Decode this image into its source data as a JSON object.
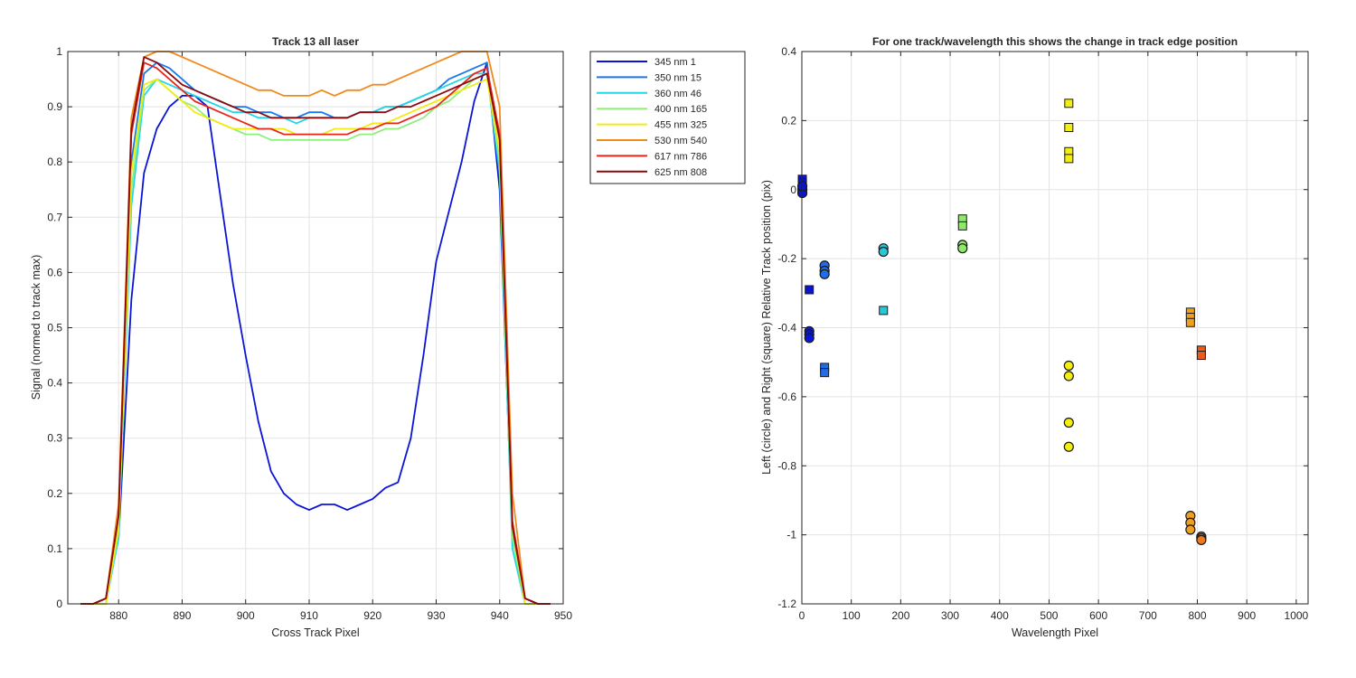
{
  "chart_data": [
    {
      "type": "line",
      "title": "Track 13  all laser",
      "xlabel": "Cross Track Pixel",
      "ylabel": "Signal (normed to track max)",
      "xlim": [
        872,
        950
      ],
      "ylim": [
        0,
        1
      ],
      "xticks": [
        880,
        890,
        900,
        910,
        920,
        930,
        940,
        950
      ],
      "yticks": [
        0,
        0.1,
        0.2,
        0.3,
        0.4,
        0.5,
        0.6,
        0.7,
        0.8,
        0.9,
        1
      ],
      "ytick_labels": [
        "0",
        "0.1",
        "0.2",
        "0.3",
        "0.4",
        "0.5",
        "0.6",
        "0.7",
        "0.8",
        "0.9",
        "1"
      ],
      "grid": true,
      "legend_position": "outside-top-right",
      "x": [
        874,
        876,
        878,
        880,
        882,
        884,
        886,
        888,
        890,
        892,
        894,
        896,
        898,
        900,
        902,
        904,
        906,
        908,
        910,
        912,
        914,
        916,
        918,
        920,
        922,
        924,
        926,
        928,
        930,
        932,
        934,
        936,
        938,
        940,
        942,
        944,
        946,
        948
      ],
      "series": [
        {
          "name": "345 nm 1",
          "color": "#0a14d6",
          "values": [
            0.0,
            0.0,
            0.01,
            0.12,
            0.55,
            0.78,
            0.86,
            0.9,
            0.92,
            0.92,
            0.9,
            0.74,
            0.58,
            0.45,
            0.33,
            0.24,
            0.2,
            0.18,
            0.17,
            0.18,
            0.18,
            0.17,
            0.18,
            0.19,
            0.21,
            0.22,
            0.3,
            0.45,
            0.62,
            0.71,
            0.8,
            0.91,
            0.98,
            0.75,
            0.12,
            0.01,
            0.0,
            0.0
          ]
        },
        {
          "name": "350 nm 15",
          "color": "#1a78ee",
          "values": [
            0.0,
            0.0,
            0.01,
            0.14,
            0.8,
            0.96,
            0.98,
            0.97,
            0.95,
            0.93,
            0.92,
            0.91,
            0.9,
            0.9,
            0.89,
            0.89,
            0.88,
            0.88,
            0.89,
            0.89,
            0.88,
            0.88,
            0.89,
            0.89,
            0.9,
            0.9,
            0.91,
            0.92,
            0.93,
            0.95,
            0.96,
            0.97,
            0.98,
            0.8,
            0.14,
            0.01,
            0.0,
            0.0
          ]
        },
        {
          "name": "360 nm 46",
          "color": "#22d6e8",
          "values": [
            0.0,
            0.0,
            0.0,
            0.12,
            0.72,
            0.92,
            0.95,
            0.94,
            0.93,
            0.92,
            0.91,
            0.9,
            0.89,
            0.89,
            0.88,
            0.88,
            0.88,
            0.87,
            0.88,
            0.88,
            0.88,
            0.88,
            0.89,
            0.89,
            0.9,
            0.9,
            0.91,
            0.92,
            0.93,
            0.94,
            0.95,
            0.96,
            0.96,
            0.78,
            0.1,
            0.0,
            0.0,
            0.0
          ]
        },
        {
          "name": "400 nm 165",
          "color": "#8ef07a",
          "values": [
            0.0,
            0.0,
            0.0,
            0.13,
            0.75,
            0.93,
            0.95,
            0.93,
            0.91,
            0.9,
            0.88,
            0.87,
            0.86,
            0.85,
            0.85,
            0.84,
            0.84,
            0.84,
            0.84,
            0.84,
            0.84,
            0.84,
            0.85,
            0.85,
            0.86,
            0.86,
            0.87,
            0.88,
            0.9,
            0.91,
            0.93,
            0.95,
            0.96,
            0.8,
            0.12,
            0.0,
            0.0,
            0.0
          ]
        },
        {
          "name": "455 nm 325",
          "color": "#f2ec12",
          "values": [
            0.0,
            0.0,
            0.0,
            0.14,
            0.78,
            0.94,
            0.95,
            0.93,
            0.91,
            0.89,
            0.88,
            0.87,
            0.86,
            0.86,
            0.86,
            0.86,
            0.86,
            0.85,
            0.85,
            0.85,
            0.86,
            0.86,
            0.86,
            0.87,
            0.87,
            0.88,
            0.89,
            0.9,
            0.91,
            0.92,
            0.93,
            0.94,
            0.95,
            0.82,
            0.14,
            0.0,
            0.0,
            0.0
          ]
        },
        {
          "name": "530 nm 540",
          "color": "#f08a1c",
          "values": [
            0.0,
            0.0,
            0.01,
            0.18,
            0.88,
            0.99,
            1.0,
            1.0,
            0.99,
            0.98,
            0.97,
            0.96,
            0.95,
            0.94,
            0.93,
            0.93,
            0.92,
            0.92,
            0.92,
            0.93,
            0.92,
            0.93,
            0.93,
            0.94,
            0.94,
            0.95,
            0.96,
            0.97,
            0.98,
            0.99,
            1.0,
            1.0,
            1.0,
            0.9,
            0.2,
            0.01,
            0.0,
            0.0
          ]
        },
        {
          "name": "617 nm 786",
          "color": "#e8261a",
          "values": [
            0.0,
            0.0,
            0.01,
            0.16,
            0.85,
            0.98,
            0.97,
            0.95,
            0.93,
            0.91,
            0.9,
            0.89,
            0.88,
            0.87,
            0.86,
            0.86,
            0.85,
            0.85,
            0.85,
            0.85,
            0.85,
            0.85,
            0.86,
            0.86,
            0.87,
            0.87,
            0.88,
            0.89,
            0.9,
            0.92,
            0.94,
            0.96,
            0.97,
            0.85,
            0.15,
            0.01,
            0.0,
            0.0
          ]
        },
        {
          "name": "625 nm 808",
          "color": "#8a0a0e",
          "values": [
            0.0,
            0.0,
            0.01,
            0.16,
            0.86,
            0.99,
            0.98,
            0.96,
            0.94,
            0.93,
            0.92,
            0.91,
            0.9,
            0.89,
            0.89,
            0.88,
            0.88,
            0.88,
            0.88,
            0.88,
            0.88,
            0.88,
            0.89,
            0.89,
            0.89,
            0.9,
            0.9,
            0.91,
            0.92,
            0.93,
            0.94,
            0.95,
            0.96,
            0.84,
            0.14,
            0.01,
            0.0,
            0.0
          ]
        }
      ]
    },
    {
      "type": "scatter",
      "title": "For one track/wavelength this shows the change in track edge position",
      "xlabel": "Wavelength Pixel",
      "ylabel": "Left (circle) and Right (square) Relative Track position (pix)",
      "xlim": [
        0,
        1024
      ],
      "ylim": [
        -1.2,
        0.4
      ],
      "xticks": [
        0,
        100,
        200,
        300,
        400,
        500,
        600,
        700,
        800,
        900,
        1000
      ],
      "yticks": [
        -1.2,
        -1,
        -0.8,
        -0.6,
        -0.4,
        -0.2,
        0,
        0.2,
        0.4
      ],
      "ytick_labels": [
        "-1.2",
        "-1",
        "-0.8",
        "-0.6",
        "-0.4",
        "-0.2",
        "0",
        "0.2",
        "0.4"
      ],
      "grid": true,
      "circles": [
        {
          "x": 1,
          "y": 0.0,
          "color": "#0a14d6"
        },
        {
          "x": 1,
          "y": -0.01,
          "color": "#0a14d6"
        },
        {
          "x": 1,
          "y": 0.01,
          "color": "#0a14d6"
        },
        {
          "x": 15,
          "y": -0.41,
          "color": "#0a14d6"
        },
        {
          "x": 15,
          "y": -0.42,
          "color": "#0a14d6"
        },
        {
          "x": 15,
          "y": -0.43,
          "color": "#0a14d6"
        },
        {
          "x": 46,
          "y": -0.22,
          "color": "#1f6ee8"
        },
        {
          "x": 46,
          "y": -0.235,
          "color": "#1f6ee8"
        },
        {
          "x": 46,
          "y": -0.245,
          "color": "#1f6ee8"
        },
        {
          "x": 165,
          "y": -0.17,
          "color": "#28c8d8"
        },
        {
          "x": 165,
          "y": -0.18,
          "color": "#28c8d8"
        },
        {
          "x": 325,
          "y": -0.16,
          "color": "#8ee86a"
        },
        {
          "x": 325,
          "y": -0.17,
          "color": "#8ee86a"
        },
        {
          "x": 540,
          "y": -0.51,
          "color": "#f4ee10"
        },
        {
          "x": 540,
          "y": -0.54,
          "color": "#f4ee10"
        },
        {
          "x": 540,
          "y": -0.675,
          "color": "#f4ee10"
        },
        {
          "x": 540,
          "y": -0.745,
          "color": "#f4ee10"
        },
        {
          "x": 786,
          "y": -0.945,
          "color": "#f0a020"
        },
        {
          "x": 786,
          "y": -0.965,
          "color": "#f0a020"
        },
        {
          "x": 786,
          "y": -0.985,
          "color": "#f0a020"
        },
        {
          "x": 808,
          "y": -1.005,
          "color": "#ee7a1c"
        },
        {
          "x": 808,
          "y": -1.01,
          "color": "#ee7a1c"
        },
        {
          "x": 808,
          "y": -1.015,
          "color": "#ee7a1c"
        }
      ],
      "squares": [
        {
          "x": 1,
          "y": 0.03,
          "color": "#0a14d6"
        },
        {
          "x": 1,
          "y": 0.02,
          "color": "#0a14d6"
        },
        {
          "x": 15,
          "y": -0.29,
          "color": "#0a14d6"
        },
        {
          "x": 46,
          "y": -0.515,
          "color": "#1f6ee8"
        },
        {
          "x": 46,
          "y": -0.53,
          "color": "#1f6ee8"
        },
        {
          "x": 165,
          "y": -0.35,
          "color": "#28c8d8"
        },
        {
          "x": 325,
          "y": -0.085,
          "color": "#8ee86a"
        },
        {
          "x": 325,
          "y": -0.105,
          "color": "#8ee86a"
        },
        {
          "x": 540,
          "y": 0.25,
          "color": "#f4ee10"
        },
        {
          "x": 540,
          "y": 0.18,
          "color": "#f4ee10"
        },
        {
          "x": 540,
          "y": 0.11,
          "color": "#f4ee10"
        },
        {
          "x": 540,
          "y": 0.09,
          "color": "#f4ee10"
        },
        {
          "x": 786,
          "y": -0.355,
          "color": "#f0a020"
        },
        {
          "x": 786,
          "y": -0.37,
          "color": "#f0a020"
        },
        {
          "x": 786,
          "y": -0.385,
          "color": "#f0a020"
        },
        {
          "x": 808,
          "y": -0.465,
          "color": "#ee5a1a"
        },
        {
          "x": 808,
          "y": -0.48,
          "color": "#ee5a1a"
        }
      ]
    }
  ]
}
